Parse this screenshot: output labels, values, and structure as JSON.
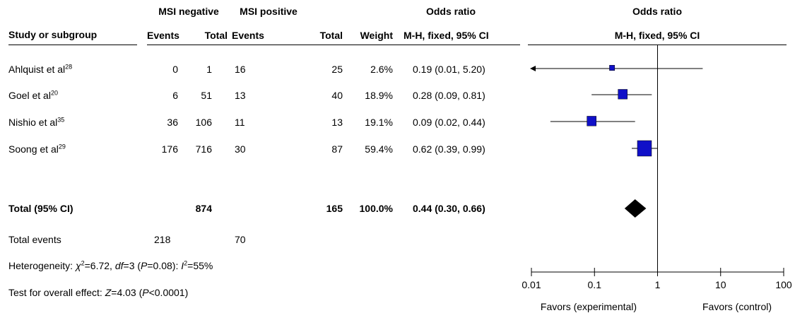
{
  "header": {
    "group1": "MSI negative",
    "group2": "MSI positive",
    "effect_measure": "Odds ratio",
    "plot_measure": "Odds ratio",
    "col_study": "Study or subgroup",
    "col_events1": "Events",
    "col_total1": "Total",
    "col_events2": "Events",
    "col_total2": "Total",
    "col_weight": "Weight",
    "col_method": "M-H, fixed, 95% CI",
    "plot_method": "M-H, fixed, 95% CI"
  },
  "studies": [
    {
      "name": "Ahlquist et al",
      "ref": "28",
      "events1": "0",
      "total1": "1",
      "events2": "16",
      "total2": "25",
      "weight": "2.6%",
      "ci_text": "0.19 (0.01, 5.20)"
    },
    {
      "name": "Goel et al",
      "ref": "20",
      "events1": "6",
      "total1": "51",
      "events2": "13",
      "total2": "40",
      "weight": "18.9%",
      "ci_text": "0.28 (0.09, 0.81)"
    },
    {
      "name": "Nishio et al",
      "ref": "35",
      "events1": "36",
      "total1": "106",
      "events2": "11",
      "total2": "13",
      "weight": "19.1%",
      "ci_text": "0.09 (0.02, 0.44)"
    },
    {
      "name": "Soong et al",
      "ref": "29",
      "events1": "176",
      "total1": "716",
      "events2": "30",
      "total2": "87",
      "weight": "59.4%",
      "ci_text": "0.62 (0.39, 0.99)"
    }
  ],
  "total": {
    "label": "Total (95% CI)",
    "total1": "874",
    "total2": "165",
    "weight": "100.0%",
    "ci_text": "0.44 (0.30, 0.66)"
  },
  "total_events": {
    "label": "Total events",
    "events1": "218",
    "events2": "70"
  },
  "heterogeneity": {
    "label": "Heterogeneity: ",
    "chi_sym": "χ",
    "chi_sup": "2",
    "chi_val": "=6.72, ",
    "df_sym": "df",
    "df_val": "=3 (",
    "p_sym": "P",
    "p_val": "=0.08): ",
    "i_sym": "I",
    "i_sup": "2",
    "i_val": "=55%"
  },
  "overall_effect": {
    "label": "Test for overall effect: ",
    "z_sym": "Z",
    "z_val": "=4.03 (",
    "p_sym": "P",
    "p_val": "<0.0001)"
  },
  "colors": {
    "marker": "#1010c8",
    "line": "#000000",
    "diamond": "#000000"
  },
  "chart_data": {
    "type": "scatter",
    "scale": "log",
    "xlim": [
      0.01,
      100
    ],
    "x_ticks": [
      0.01,
      0.1,
      1,
      10,
      100
    ],
    "x_tick_labels": [
      "0.01",
      "0.1",
      "1",
      "10",
      "100"
    ],
    "reference_line": 1,
    "left_label": "Favors (experimental)",
    "right_label": "Favors (control)",
    "series": [
      {
        "name": "Ahlquist et al",
        "or": 0.19,
        "lower": 0.01,
        "upper": 5.2,
        "weight": 2.6
      },
      {
        "name": "Goel et al",
        "or": 0.28,
        "lower": 0.09,
        "upper": 0.81,
        "weight": 18.9
      },
      {
        "name": "Nishio et al",
        "or": 0.09,
        "lower": 0.02,
        "upper": 0.44,
        "weight": 19.1
      },
      {
        "name": "Soong et al",
        "or": 0.62,
        "lower": 0.39,
        "upper": 0.99,
        "weight": 59.4
      }
    ],
    "pooled": {
      "or": 0.44,
      "lower": 0.3,
      "upper": 0.66
    }
  }
}
